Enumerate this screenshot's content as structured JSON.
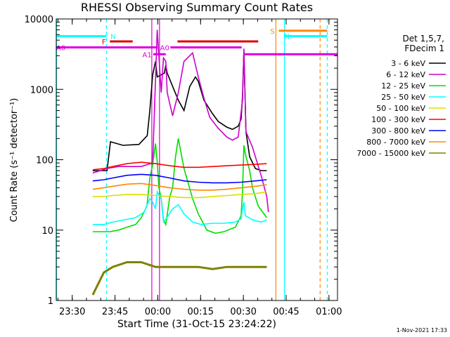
{
  "title": "RHESSI Observing Summary Count Rates",
  "xlabel": "Start Time (31-Oct-15 23:24:22)",
  "ylabel": "Count Rate (s⁻¹ detector⁻¹)",
  "footer": "1-Nov-2021 17:33",
  "legend_header": [
    "Det 1,5,7,",
    "FDecim 1"
  ],
  "chart_data": {
    "type": "line",
    "title": "RHESSI Observing Summary Count Rates",
    "xlabel": "Start Time (31-Oct-15 23:24:22)",
    "ylabel": "Count Rate (s⁻¹ detector⁻¹)",
    "x_units": "minutes from 23:24:22",
    "xlim": [
      0,
      98.6
    ],
    "ylim": [
      1,
      10000
    ],
    "yscale": "log",
    "x_ticks": [
      {
        "label": "23:30",
        "x": 5.6
      },
      {
        "label": "23:45",
        "x": 20.6
      },
      {
        "label": "00:00",
        "x": 35.6
      },
      {
        "label": "00:15",
        "x": 50.6
      },
      {
        "label": "00:30",
        "x": 65.6
      },
      {
        "label": "00:45",
        "x": 80.6
      },
      {
        "label": "01:00",
        "x": 95.6
      }
    ],
    "y_ticks": [
      {
        "label": "1",
        "y": 1
      },
      {
        "label": "10",
        "y": 10
      },
      {
        "label": "100",
        "y": 100
      },
      {
        "label": "1000",
        "y": 1000
      },
      {
        "label": "10000",
        "y": 10000
      }
    ],
    "series": [
      {
        "name": "3 - 6 keV",
        "color": "#000000",
        "x": [
          12.8,
          16.7,
          17.8,
          19.0,
          23.4,
          29.0,
          31.9,
          32.8,
          33.8,
          34.8,
          35.4,
          37.9,
          38.4,
          38.9,
          42.8,
          44.8,
          46.8,
          48.8,
          49.8,
          51.8,
          54.8,
          56.8,
          59.8,
          61.8,
          63.8,
          64.8,
          65.3,
          65.8,
          66.5,
          67.8,
          69.8,
          71.8,
          73.8
        ],
        "y": [
          70,
          70,
          70,
          180,
          160,
          165,
          220,
          500,
          1600,
          2500,
          1500,
          1700,
          2200,
          1700,
          700,
          500,
          1100,
          1500,
          1300,
          700,
          450,
          350,
          290,
          270,
          300,
          380,
          800,
          3500,
          250,
          110,
          75,
          70,
          70
        ]
      },
      {
        "name": "6 - 12 keV",
        "color": "#cc00cc",
        "x": [
          12.8,
          17.8,
          21.8,
          24.8,
          29.8,
          33.8,
          35.4,
          36.8,
          37.6,
          38.4,
          38.9,
          40.8,
          42.8,
          44.8,
          47.8,
          49.8,
          51.8,
          53.8,
          56.8,
          59.8,
          61.8,
          63.8,
          65.3,
          65.8,
          66.5,
          68.8,
          71.8,
          73.8,
          74.4
        ],
        "y": [
          65,
          75,
          80,
          80,
          80,
          90,
          7000,
          900,
          2800,
          2500,
          900,
          420,
          900,
          2500,
          3300,
          1500,
          750,
          400,
          280,
          210,
          190,
          210,
          700,
          3800,
          250,
          150,
          60,
          30,
          18
        ]
      },
      {
        "name": "12 - 25 keV",
        "color": "#00dd00",
        "x": [
          12.8,
          16.7,
          18.8,
          21.8,
          24.8,
          27.8,
          29.8,
          31.8,
          32.8,
          33.8,
          34.8,
          35.4,
          36.0,
          36.8,
          37.6,
          38.4,
          39.8,
          40.8,
          41.8,
          42.8,
          44.8,
          47.8,
          49.8,
          52.8,
          55.8,
          58.8,
          62.8,
          64.8,
          65.3,
          65.8,
          66.3,
          67.8,
          68.8,
          70.8,
          73.8
        ],
        "y": [
          9.5,
          9.5,
          9.5,
          10,
          11,
          12,
          15,
          22,
          55,
          85,
          170,
          95,
          40,
          28,
          14,
          12,
          30,
          40,
          110,
          200,
          75,
          28,
          17,
          10,
          9,
          9.5,
          11,
          16,
          35,
          160,
          120,
          70,
          40,
          22,
          15
        ]
      },
      {
        "name": "25 - 50 keV",
        "color": "#00ffff",
        "x": [
          12.8,
          16.7,
          19.8,
          23.8,
          27.8,
          30.8,
          32.8,
          33.8,
          34.8,
          35.4,
          36.8,
          37.6,
          38.8,
          40.8,
          42.8,
          44.8,
          47.8,
          50.8,
          54.8,
          58.8,
          62.8,
          64.8,
          65.3,
          65.8,
          66.3,
          68.8,
          71.8,
          73.8
        ],
        "y": [
          12,
          12,
          13,
          14,
          15,
          18,
          28,
          25,
          20,
          35,
          28,
          13,
          15,
          20,
          23,
          17,
          13,
          12,
          12.5,
          12.5,
          13,
          14.5,
          20,
          25,
          16,
          14,
          13,
          14
        ]
      },
      {
        "name": "50 - 100 keV",
        "color": "#dddd00",
        "x": [
          12.8,
          16.7,
          19.8,
          24.8,
          29.8,
          34.8,
          39.8,
          44.8,
          49.8,
          54.8,
          59.8,
          64.8,
          69.8,
          73.8
        ],
        "y": [
          30,
          30,
          31,
          32,
          32,
          31,
          30,
          29,
          29,
          30,
          31,
          32,
          33,
          35
        ]
      },
      {
        "name": "100 - 300 keV",
        "color": "#ff0000",
        "x": [
          12.8,
          16.7,
          19.8,
          24.8,
          29.8,
          34.8,
          39.8,
          44.8,
          49.8,
          54.8,
          59.8,
          64.8,
          69.8,
          73.8
        ],
        "y": [
          72,
          75,
          80,
          88,
          92,
          88,
          82,
          78,
          78,
          80,
          82,
          84,
          86,
          88
        ]
      },
      {
        "name": "300 - 800 keV",
        "color": "#0000ff",
        "x": [
          12.8,
          16.7,
          19.8,
          24.8,
          29.8,
          34.8,
          39.8,
          44.8,
          49.8,
          54.8,
          59.8,
          64.8,
          69.8,
          73.8
        ],
        "y": [
          50,
          52,
          55,
          60,
          62,
          60,
          55,
          50,
          48,
          47,
          47,
          48,
          50,
          52
        ]
      },
      {
        "name": "800 - 7000 keV",
        "color": "#ff8800",
        "x": [
          12.8,
          16.7,
          19.8,
          24.8,
          29.8,
          34.8,
          39.8,
          44.8,
          49.8,
          54.8,
          59.8,
          64.8,
          69.8,
          73.8
        ],
        "y": [
          38,
          40,
          42,
          45,
          46,
          43,
          40,
          38,
          37,
          37,
          38,
          40,
          42,
          44
        ]
      },
      {
        "name": "7000 - 15000 keV",
        "color": "#808000",
        "x": [
          12.8,
          16.7,
          19.8,
          24.8,
          29.8,
          34.8,
          39.8,
          44.8,
          49.8,
          54.8,
          59.8,
          64.8,
          69.8,
          73.8
        ],
        "y": [
          1.2,
          2.5,
          3,
          3.5,
          3.5,
          3,
          3,
          3,
          3,
          2.8,
          3,
          3,
          3,
          3
        ]
      }
    ],
    "annotations": [
      {
        "label": "N",
        "color": "#00ffff",
        "x": [
          0,
          17.6
        ],
        "y": 5700,
        "label_x": 19.0
      },
      {
        "label": "N",
        "color": "#00ffff",
        "x": [
          80.0,
          95.0
        ],
        "y": 5700
      },
      {
        "label": "S",
        "color": "#ff8800",
        "x": [
          78.0,
          95.0
        ],
        "y": 6800,
        "label_x": 75.0
      },
      {
        "label": "F",
        "color": "#dd0000",
        "x": [
          18.8,
          26.8
        ],
        "y": 4800,
        "label_x": 16.0
      },
      {
        "label": "",
        "color": "#dd0000",
        "x": [
          42.5,
          70.8
        ],
        "y": 4800
      },
      {
        "label": "A1",
        "color": "#dd00dd",
        "x": [
          34.0,
          38.4
        ],
        "y": 3150,
        "label_x": 30.2
      },
      {
        "label": "A0",
        "color": "#dd00dd",
        "x": [
          0,
          35.5
        ],
        "y": 3950
      },
      {
        "label": "A0",
        "color": "#dd00dd",
        "x": [
          40.0,
          65.0
        ],
        "y": 3950,
        "label_x": 36.4
      },
      {
        "label": "",
        "color": "#dd00dd",
        "x": [
          65.8,
          98.6
        ],
        "y": 3150
      }
    ],
    "vlines": [
      {
        "x": 0.1,
        "color": "#00ffff",
        "style": "solid"
      },
      {
        "x": 17.6,
        "color": "#00ffff",
        "style": "dashed"
      },
      {
        "x": 80.0,
        "color": "#00ffff",
        "style": "solid"
      },
      {
        "x": 95.0,
        "color": "#00ffff",
        "style": "dashed"
      },
      {
        "x": 77.0,
        "color": "#ff8800",
        "style": "solid"
      },
      {
        "x": 92.5,
        "color": "#ff8800",
        "style": "dashed"
      },
      {
        "x": 33.5,
        "color": "#dd00dd",
        "style": "solid"
      },
      {
        "x": 36.2,
        "color": "#dd00dd",
        "style": "solid"
      }
    ],
    "legend_placement": "right",
    "grid": false
  }
}
